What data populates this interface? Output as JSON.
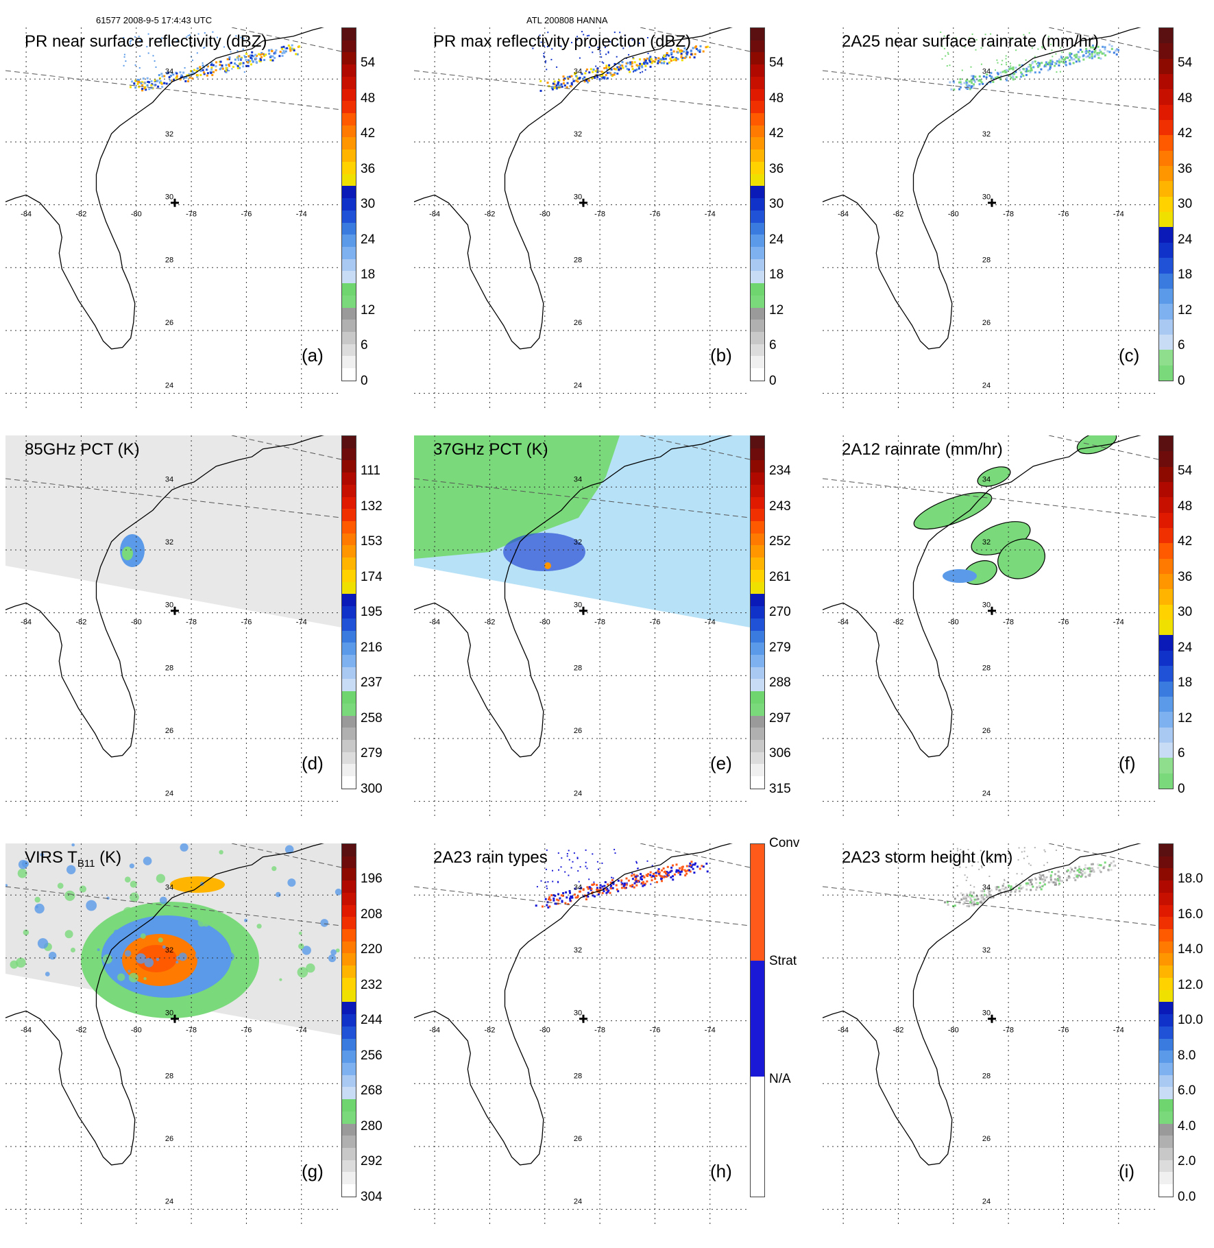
{
  "header": {
    "orbit_info": "61577 2008-9-5 17:4:43 UTC",
    "storm_info": "ATL 200808 HANNA"
  },
  "map_labels": {
    "lon": [
      "-84",
      "-82",
      "-80",
      "-78",
      "-76",
      "-74"
    ],
    "lat": [
      "34",
      "32",
      "30",
      "28",
      "26",
      "24"
    ]
  },
  "palettes": {
    "reflect": [
      "#ffffff",
      "#f0f0f0",
      "#dcdcdc",
      "#c8c8c8",
      "#b0b0b0",
      "#9a9a9a",
      "#7ad97a",
      "#6fd66f",
      "#c8dcf5",
      "#a9c9f2",
      "#7eb1ef",
      "#5a9ae9",
      "#3a7be0",
      "#1f52d6",
      "#1032c8",
      "#0a1ab8",
      "#f0e000",
      "#ffd200",
      "#ffb400",
      "#ff9600",
      "#ff7a00",
      "#ff5a00",
      "#f03000",
      "#e01a00",
      "#c81000",
      "#b00a00",
      "#8c0a00",
      "#6e0c0c",
      "#5a1010"
    ],
    "pct": [
      "#ffffff",
      "#f0f0f0",
      "#dcdcdc",
      "#c8c8c8",
      "#b0b0b0",
      "#9a9a9a",
      "#7ad97a",
      "#6fd66f",
      "#c8dcf5",
      "#a9c9f2",
      "#7eb1ef",
      "#5a9ae9",
      "#3a7be0",
      "#1f52d6",
      "#1032c8",
      "#0a1ab8",
      "#f0e000",
      "#ffd200",
      "#ffb400",
      "#ff9600",
      "#ff7a00",
      "#ff5a00",
      "#f03000",
      "#e01a00",
      "#c81000",
      "#b00a00",
      "#8c0a00",
      "#6e0c0c",
      "#5a1010"
    ],
    "rain": [
      "#7ad97a",
      "#8ede8e",
      "#c8dcf5",
      "#a9c9f2",
      "#7eb1ef",
      "#5a9ae9",
      "#3a7be0",
      "#1f52d6",
      "#1032c8",
      "#0a1ab8",
      "#f0e000",
      "#ffd200",
      "#ffb400",
      "#ff9600",
      "#ff7a00",
      "#ff5a00",
      "#f03000",
      "#e01a00",
      "#c81000",
      "#b00a00",
      "#8c0a00",
      "#6e0c0c",
      "#5a1010"
    ],
    "types": [
      "#ffffff",
      "#1a1ad6",
      "#ff5a1a"
    ],
    "height": [
      "#ffffff",
      "#f0f0f0",
      "#dcdcdc",
      "#c8c8c8",
      "#b0b0b0",
      "#9a9a9a",
      "#7ad97a",
      "#6fd66f",
      "#c8dcf5",
      "#a9c9f2",
      "#7eb1ef",
      "#5a9ae9",
      "#3a7be0",
      "#1f52d6",
      "#1032c8",
      "#0a1ab8",
      "#f0e000",
      "#ffd200",
      "#ffb400",
      "#ff9600",
      "#ff7a00",
      "#ff5a00",
      "#f03000",
      "#e01a00",
      "#c81000",
      "#b00a00",
      "#8c0a00",
      "#6e0c0c",
      "#5a1010"
    ]
  },
  "panels": [
    {
      "id": "a",
      "title": "PR near surface reflectivity (dBZ)",
      "label": "(a)",
      "palette": "reflect",
      "ticks": [
        "54",
        "48",
        "42",
        "36",
        "30",
        "24",
        "18",
        "12",
        "6",
        "0"
      ],
      "field": "pr_surface",
      "swath": "narrow"
    },
    {
      "id": "b",
      "title": "PR max reflectivity projection (dBZ)",
      "label": "(b)",
      "palette": "reflect",
      "ticks": [
        "54",
        "48",
        "42",
        "36",
        "30",
        "24",
        "18",
        "12",
        "6",
        "0"
      ],
      "field": "pr_max",
      "swath": "narrow"
    },
    {
      "id": "c",
      "title": "2A25 near surface rainrate (mm/hr)",
      "label": "(c)",
      "palette": "rain",
      "ticks": [
        "54",
        "48",
        "42",
        "36",
        "30",
        "24",
        "18",
        "12",
        "6",
        "0"
      ],
      "field": "rain25",
      "swath": "narrow"
    },
    {
      "id": "d",
      "title": "85GHz PCT (K)",
      "label": "(d)",
      "palette": "pct",
      "ticks": [
        "111",
        "132",
        "153",
        "174",
        "195",
        "216",
        "237",
        "258",
        "279",
        "300"
      ],
      "field": "pct85",
      "swath": "wide"
    },
    {
      "id": "e",
      "title": "37GHz PCT (K)",
      "label": "(e)",
      "palette": "pct",
      "ticks": [
        "234",
        "243",
        "252",
        "261",
        "270",
        "279",
        "288",
        "297",
        "306",
        "315"
      ],
      "field": "pct37",
      "swath": "wide"
    },
    {
      "id": "f",
      "title": "2A12 rainrate (mm/hr)",
      "label": "(f)",
      "palette": "rain",
      "ticks": [
        "54",
        "48",
        "42",
        "36",
        "30",
        "24",
        "18",
        "12",
        "6",
        "0"
      ],
      "field": "rain12",
      "swath": "wide"
    },
    {
      "id": "g",
      "title": "VIRS T",
      "title_sub": "B11",
      "title_tail": " (K)",
      "label": "(g)",
      "palette": "pct",
      "ticks": [
        "196",
        "208",
        "220",
        "232",
        "244",
        "256",
        "268",
        "280",
        "292",
        "304"
      ],
      "field": "virs",
      "swath": "wide"
    },
    {
      "id": "h",
      "title": "2A23 rain types",
      "label": "(h)",
      "palette": "types",
      "ticks": [
        "Conv",
        "Strat",
        "N/A"
      ],
      "field": "types",
      "swath": "narrow"
    },
    {
      "id": "i",
      "title": "2A23 storm height (km)",
      "label": "(i)",
      "palette": "height",
      "ticks": [
        "18.0",
        "16.0",
        "14.0",
        "12.0",
        "10.0",
        "8.0",
        "6.0",
        "4.0",
        "2.0",
        "0.0"
      ],
      "field": "height",
      "swath": "narrow"
    }
  ]
}
